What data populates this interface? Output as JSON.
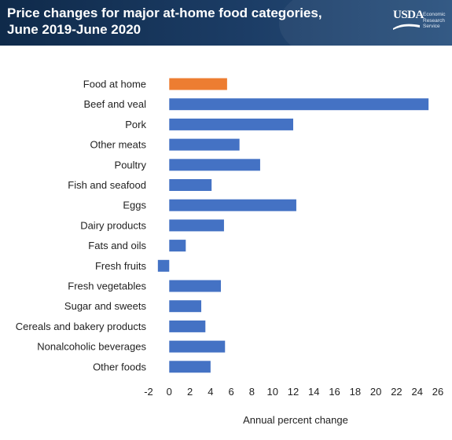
{
  "header": {
    "title_line1": "Price changes for major at-home food categories,",
    "title_line2": "June 2019-June 2020",
    "logo_word": "USDA",
    "logo_line1": "Economic",
    "logo_line2": "Research",
    "logo_line3": "Service"
  },
  "colors": {
    "highlight": "#ed7d31",
    "bar": "#4472c4",
    "header": "#1c3d66"
  },
  "chart_data": {
    "type": "bar",
    "orientation": "horizontal",
    "categories": [
      "Food at home",
      "Beef and veal",
      "Pork",
      "Other meats",
      "Poultry",
      "Fish and seafood",
      "Eggs",
      "Dairy products",
      "Fats and oils",
      "Fresh fruits",
      "Fresh vegetables",
      "Sugar and sweets",
      "Cereals and bakery products",
      "Nonalcoholic beverages",
      "Other foods"
    ],
    "values": [
      5.6,
      25.1,
      12.0,
      6.8,
      8.8,
      4.1,
      12.3,
      5.3,
      1.6,
      -1.1,
      5.0,
      3.1,
      3.5,
      5.4,
      4.0
    ],
    "highlight_index": 0,
    "xlabel": "Annual percent change",
    "xlim": [
      -2,
      26
    ],
    "xticks": [
      "-2",
      "0",
      "2",
      "4",
      "6",
      "8",
      "10",
      "12",
      "14",
      "16",
      "18",
      "20",
      "22",
      "24",
      "26"
    ],
    "grid": false,
    "legend": "none"
  }
}
